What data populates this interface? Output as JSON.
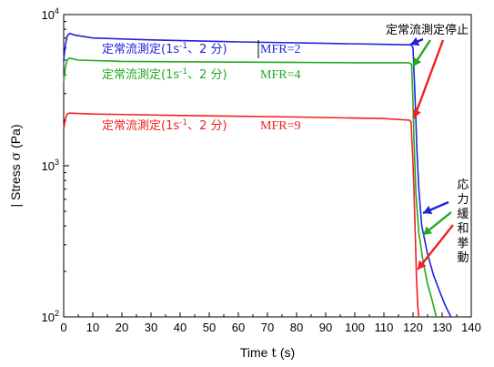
{
  "chart_data": {
    "type": "line",
    "xlabel": "Time",
    "xlabel_symbol": "t",
    "xlabel_unit": "(s)",
    "ylabel": "| Stress",
    "ylabel_symbol": "σ",
    "ylabel_unit": "(Pa)",
    "xlim": [
      0,
      140
    ],
    "ylim": [
      100,
      10000
    ],
    "yscale": "log",
    "x_ticks": [
      0,
      10,
      20,
      30,
      40,
      50,
      60,
      70,
      80,
      90,
      100,
      110,
      120,
      130,
      140
    ],
    "y_ticks": [
      {
        "value": 100,
        "base": "10",
        "exp": "2"
      },
      {
        "value": 1000,
        "base": "10",
        "exp": "3"
      },
      {
        "value": 10000,
        "base": "10",
        "exp": "4"
      }
    ],
    "grid": false,
    "series": [
      {
        "name": "MFR=2",
        "color": "#2222dd",
        "points": [
          [
            0,
            5000
          ],
          [
            0.6,
            6300
          ],
          [
            1.2,
            7200
          ],
          [
            2,
            7500
          ],
          [
            4,
            7300
          ],
          [
            10,
            7000
          ],
          [
            30,
            6800
          ],
          [
            60,
            6600
          ],
          [
            90,
            6450
          ],
          [
            110,
            6350
          ],
          [
            119.5,
            6300
          ],
          [
            120,
            6000
          ],
          [
            120.8,
            2500
          ],
          [
            121.3,
            1300
          ],
          [
            122,
            700
          ],
          [
            123,
            400
          ],
          [
            125,
            260
          ],
          [
            127,
            190
          ],
          [
            129,
            150
          ],
          [
            131,
            120
          ],
          [
            133,
            100
          ]
        ]
      },
      {
        "name": "MFR=4",
        "color": "#22aa22",
        "points": [
          [
            0,
            3600
          ],
          [
            0.6,
            4500
          ],
          [
            1.2,
            5000
          ],
          [
            2,
            5150
          ],
          [
            5,
            5000
          ],
          [
            20,
            4900
          ],
          [
            60,
            4850
          ],
          [
            100,
            4800
          ],
          [
            118.5,
            4800
          ],
          [
            119.5,
            4700
          ],
          [
            119.9,
            3000
          ],
          [
            120.3,
            1500
          ],
          [
            121,
            650
          ],
          [
            122,
            360
          ],
          [
            123.5,
            230
          ],
          [
            125,
            165
          ],
          [
            126.5,
            130
          ],
          [
            128,
            100
          ]
        ]
      },
      {
        "name": "MFR=9",
        "color": "#ee2222",
        "points": [
          [
            0,
            1750
          ],
          [
            0.6,
            2050
          ],
          [
            1.2,
            2200
          ],
          [
            2,
            2230
          ],
          [
            10,
            2200
          ],
          [
            40,
            2150
          ],
          [
            80,
            2100
          ],
          [
            110,
            2050
          ],
          [
            118.8,
            2000
          ],
          [
            119.3,
            1950
          ],
          [
            119.6,
            1500
          ],
          [
            119.9,
            1150
          ],
          [
            120.3,
            700
          ],
          [
            120.8,
            330
          ],
          [
            121.2,
            180
          ],
          [
            121.6,
            120
          ],
          [
            122,
            100
          ]
        ]
      }
    ],
    "annotations": {
      "stop_label": "定常流測定停止",
      "relax_label": "応力緩和挙動",
      "legend_prefix": "定常流測定(1s",
      "legend_sup": "-1",
      "legend_suffix": "、2 分)",
      "mfr_labels": [
        "MFR=2",
        "MFR=4",
        "MFR=9"
      ]
    }
  }
}
